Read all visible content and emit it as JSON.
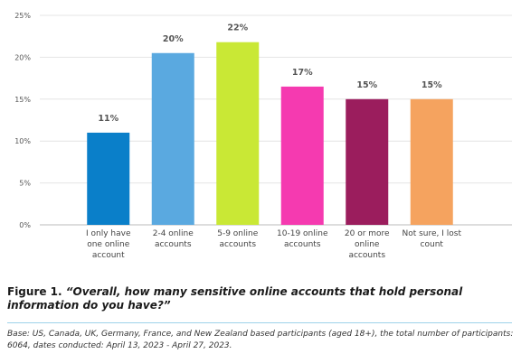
{
  "chart_data": {
    "type": "bar",
    "categories": [
      "I only have one online account",
      "2-4 online accounts",
      "5-9 online accounts",
      "10-19 online accounts",
      "20 or more online accounts",
      "Not sure, I lost count"
    ],
    "category_lines": [
      [
        "I only have",
        "one online",
        "account"
      ],
      [
        "2-4 online",
        "accounts"
      ],
      [
        "5-9 online",
        "accounts"
      ],
      [
        "10-19 online",
        "accounts"
      ],
      [
        "20 or more",
        "online",
        "accounts"
      ],
      [
        "Not sure, I lost",
        "count"
      ]
    ],
    "values": [
      11,
      20.5,
      21.8,
      16.5,
      15,
      15
    ],
    "data_labels": [
      "11%",
      "20%",
      "22%",
      "17%",
      "15%",
      "15%"
    ],
    "colors": [
      "#0a7fc9",
      "#5aa9e0",
      "#c9e835",
      "#f53ab0",
      "#9b1d5d",
      "#f5a35f"
    ],
    "ylim": [
      0,
      25
    ],
    "yticks": [
      0,
      5,
      10,
      15,
      20,
      25
    ],
    "ytick_labels": [
      "0%",
      "5%",
      "10%",
      "15%",
      "20%",
      "25%"
    ],
    "grid": true,
    "title": "",
    "xlabel": "",
    "ylabel": ""
  },
  "caption": {
    "prefix": "Figure 1.",
    "text": "“Overall, how many sensitive online accounts that hold personal information do you have?”"
  },
  "source_note": "Base: US, Canada, UK, Germany, France, and New Zealand based participants (aged 18+), the total number of participants: 6064, dates conducted: April 13, 2023 - April 27, 2023."
}
